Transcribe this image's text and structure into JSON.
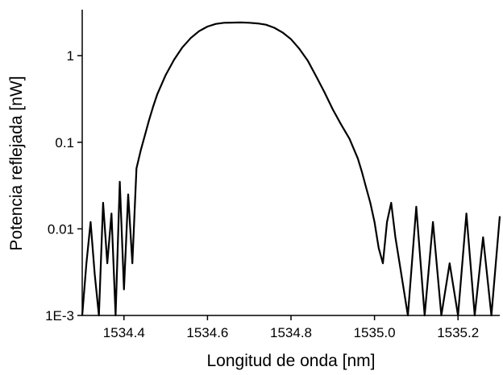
{
  "chart_data": {
    "type": "line",
    "title": "",
    "xlabel": "Longitud de onda [nm]",
    "ylabel": "Potencia reflejada [nW]",
    "xlim": [
      1534.3,
      1535.3
    ],
    "ylim": [
      0.001,
      3.4
    ],
    "y_scale": "log",
    "grid": false,
    "legend": "none",
    "x_ticks": [
      {
        "value": 1534.4,
        "label": "1534.4"
      },
      {
        "value": 1534.6,
        "label": "1534.6"
      },
      {
        "value": 1534.8,
        "label": "1534.8"
      },
      {
        "value": 1535.0,
        "label": "1535.0"
      },
      {
        "value": 1535.2,
        "label": "1535.2"
      }
    ],
    "y_ticks": [
      {
        "value": 0.001,
        "label": "1E-3"
      },
      {
        "value": 0.01,
        "label": "0.01"
      },
      {
        "value": 0.1,
        "label": "0.1"
      },
      {
        "value": 1,
        "label": "1"
      }
    ],
    "series": [
      {
        "line_color": "#000000",
        "peak": {
          "x": 1534.7,
          "y": 2.4
        },
        "x": [
          1534.3,
          1534.31,
          1534.32,
          1534.33,
          1534.34,
          1534.35,
          1534.36,
          1534.37,
          1534.38,
          1534.39,
          1534.4,
          1534.41,
          1534.42,
          1534.43,
          1534.44,
          1534.45,
          1534.46,
          1534.47,
          1534.48,
          1534.5,
          1534.52,
          1534.54,
          1534.56,
          1534.58,
          1534.6,
          1534.62,
          1534.64,
          1534.66,
          1534.68,
          1534.7,
          1534.72,
          1534.74,
          1534.76,
          1534.78,
          1534.8,
          1534.82,
          1534.84,
          1534.86,
          1534.88,
          1534.9,
          1534.92,
          1534.94,
          1534.96,
          1534.97,
          1534.98,
          1534.99,
          1535.0,
          1535.01,
          1535.02,
          1535.03,
          1535.04,
          1535.05,
          1535.06,
          1535.08,
          1535.1,
          1535.12,
          1535.14,
          1535.16,
          1535.18,
          1535.2,
          1535.22,
          1535.24,
          1535.26,
          1535.28,
          1535.3
        ],
        "y": [
          0.001,
          0.004,
          0.012,
          0.003,
          0.001,
          0.02,
          0.004,
          0.015,
          0.001,
          0.035,
          0.002,
          0.025,
          0.004,
          0.05,
          0.08,
          0.12,
          0.18,
          0.26,
          0.36,
          0.6,
          0.9,
          1.25,
          1.6,
          1.92,
          2.17,
          2.33,
          2.4,
          2.41,
          2.42,
          2.4,
          2.36,
          2.28,
          2.1,
          1.85,
          1.55,
          1.2,
          0.88,
          0.58,
          0.38,
          0.24,
          0.16,
          0.11,
          0.065,
          0.045,
          0.03,
          0.02,
          0.012,
          0.006,
          0.004,
          0.012,
          0.02,
          0.008,
          0.004,
          0.001,
          0.018,
          0.001,
          0.012,
          0.001,
          0.004,
          0.001,
          0.015,
          0.001,
          0.008,
          0.001,
          0.014
        ]
      }
    ]
  }
}
